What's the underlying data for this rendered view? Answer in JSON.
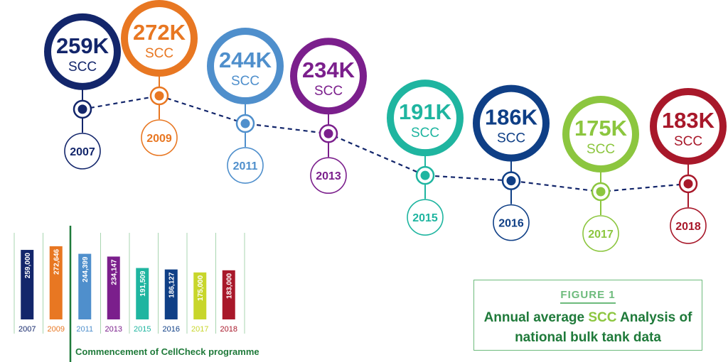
{
  "chart_data": [
    {
      "type": "line",
      "unit_label": "SCC",
      "points": [
        {
          "year": "2007",
          "label": "259K",
          "value": 259000,
          "color": "#13266b"
        },
        {
          "year": "2009",
          "label": "272K",
          "value": 272646,
          "color": "#e87722"
        },
        {
          "year": "2011",
          "label": "244K",
          "value": 244399,
          "color": "#4f8fcc"
        },
        {
          "year": "2013",
          "label": "234K",
          "value": 234147,
          "color": "#7b1f8c"
        },
        {
          "year": "2015",
          "label": "191K",
          "value": 191509,
          "color": "#1fb5a0"
        },
        {
          "year": "2016",
          "label": "186K",
          "value": 186127,
          "color": "#0f3f86"
        },
        {
          "year": "2017",
          "label": "175K",
          "value": 175000,
          "color": "#8cc63f"
        },
        {
          "year": "2018",
          "label": "183K",
          "value": 183000,
          "color": "#a8182a"
        }
      ]
    },
    {
      "type": "bar",
      "categories": [
        "2007",
        "2009",
        "2011",
        "2013",
        "2015",
        "2016",
        "2017",
        "2018"
      ],
      "values": [
        259000,
        272646,
        244399,
        234147,
        191509,
        186127,
        175000,
        183000
      ],
      "value_labels": [
        "259,000",
        "272,646",
        "244,399",
        "234,147",
        "191,509",
        "186,127",
        "175,000",
        "183,000"
      ],
      "colors": [
        "#13266b",
        "#e87722",
        "#4f8fcc",
        "#7b1f8c",
        "#1fb5a0",
        "#0f3f86",
        "#c8d62b",
        "#a8182a"
      ],
      "ylim": [
        0,
        275000
      ],
      "annotation": "Commencement of CellCheck programme"
    }
  ],
  "figure": {
    "label": "FIGURE 1",
    "title_part1": "Annual average ",
    "title_highlight": "SCC",
    "title_part2": " Analysis of",
    "title_line2": "national bulk tank data"
  }
}
